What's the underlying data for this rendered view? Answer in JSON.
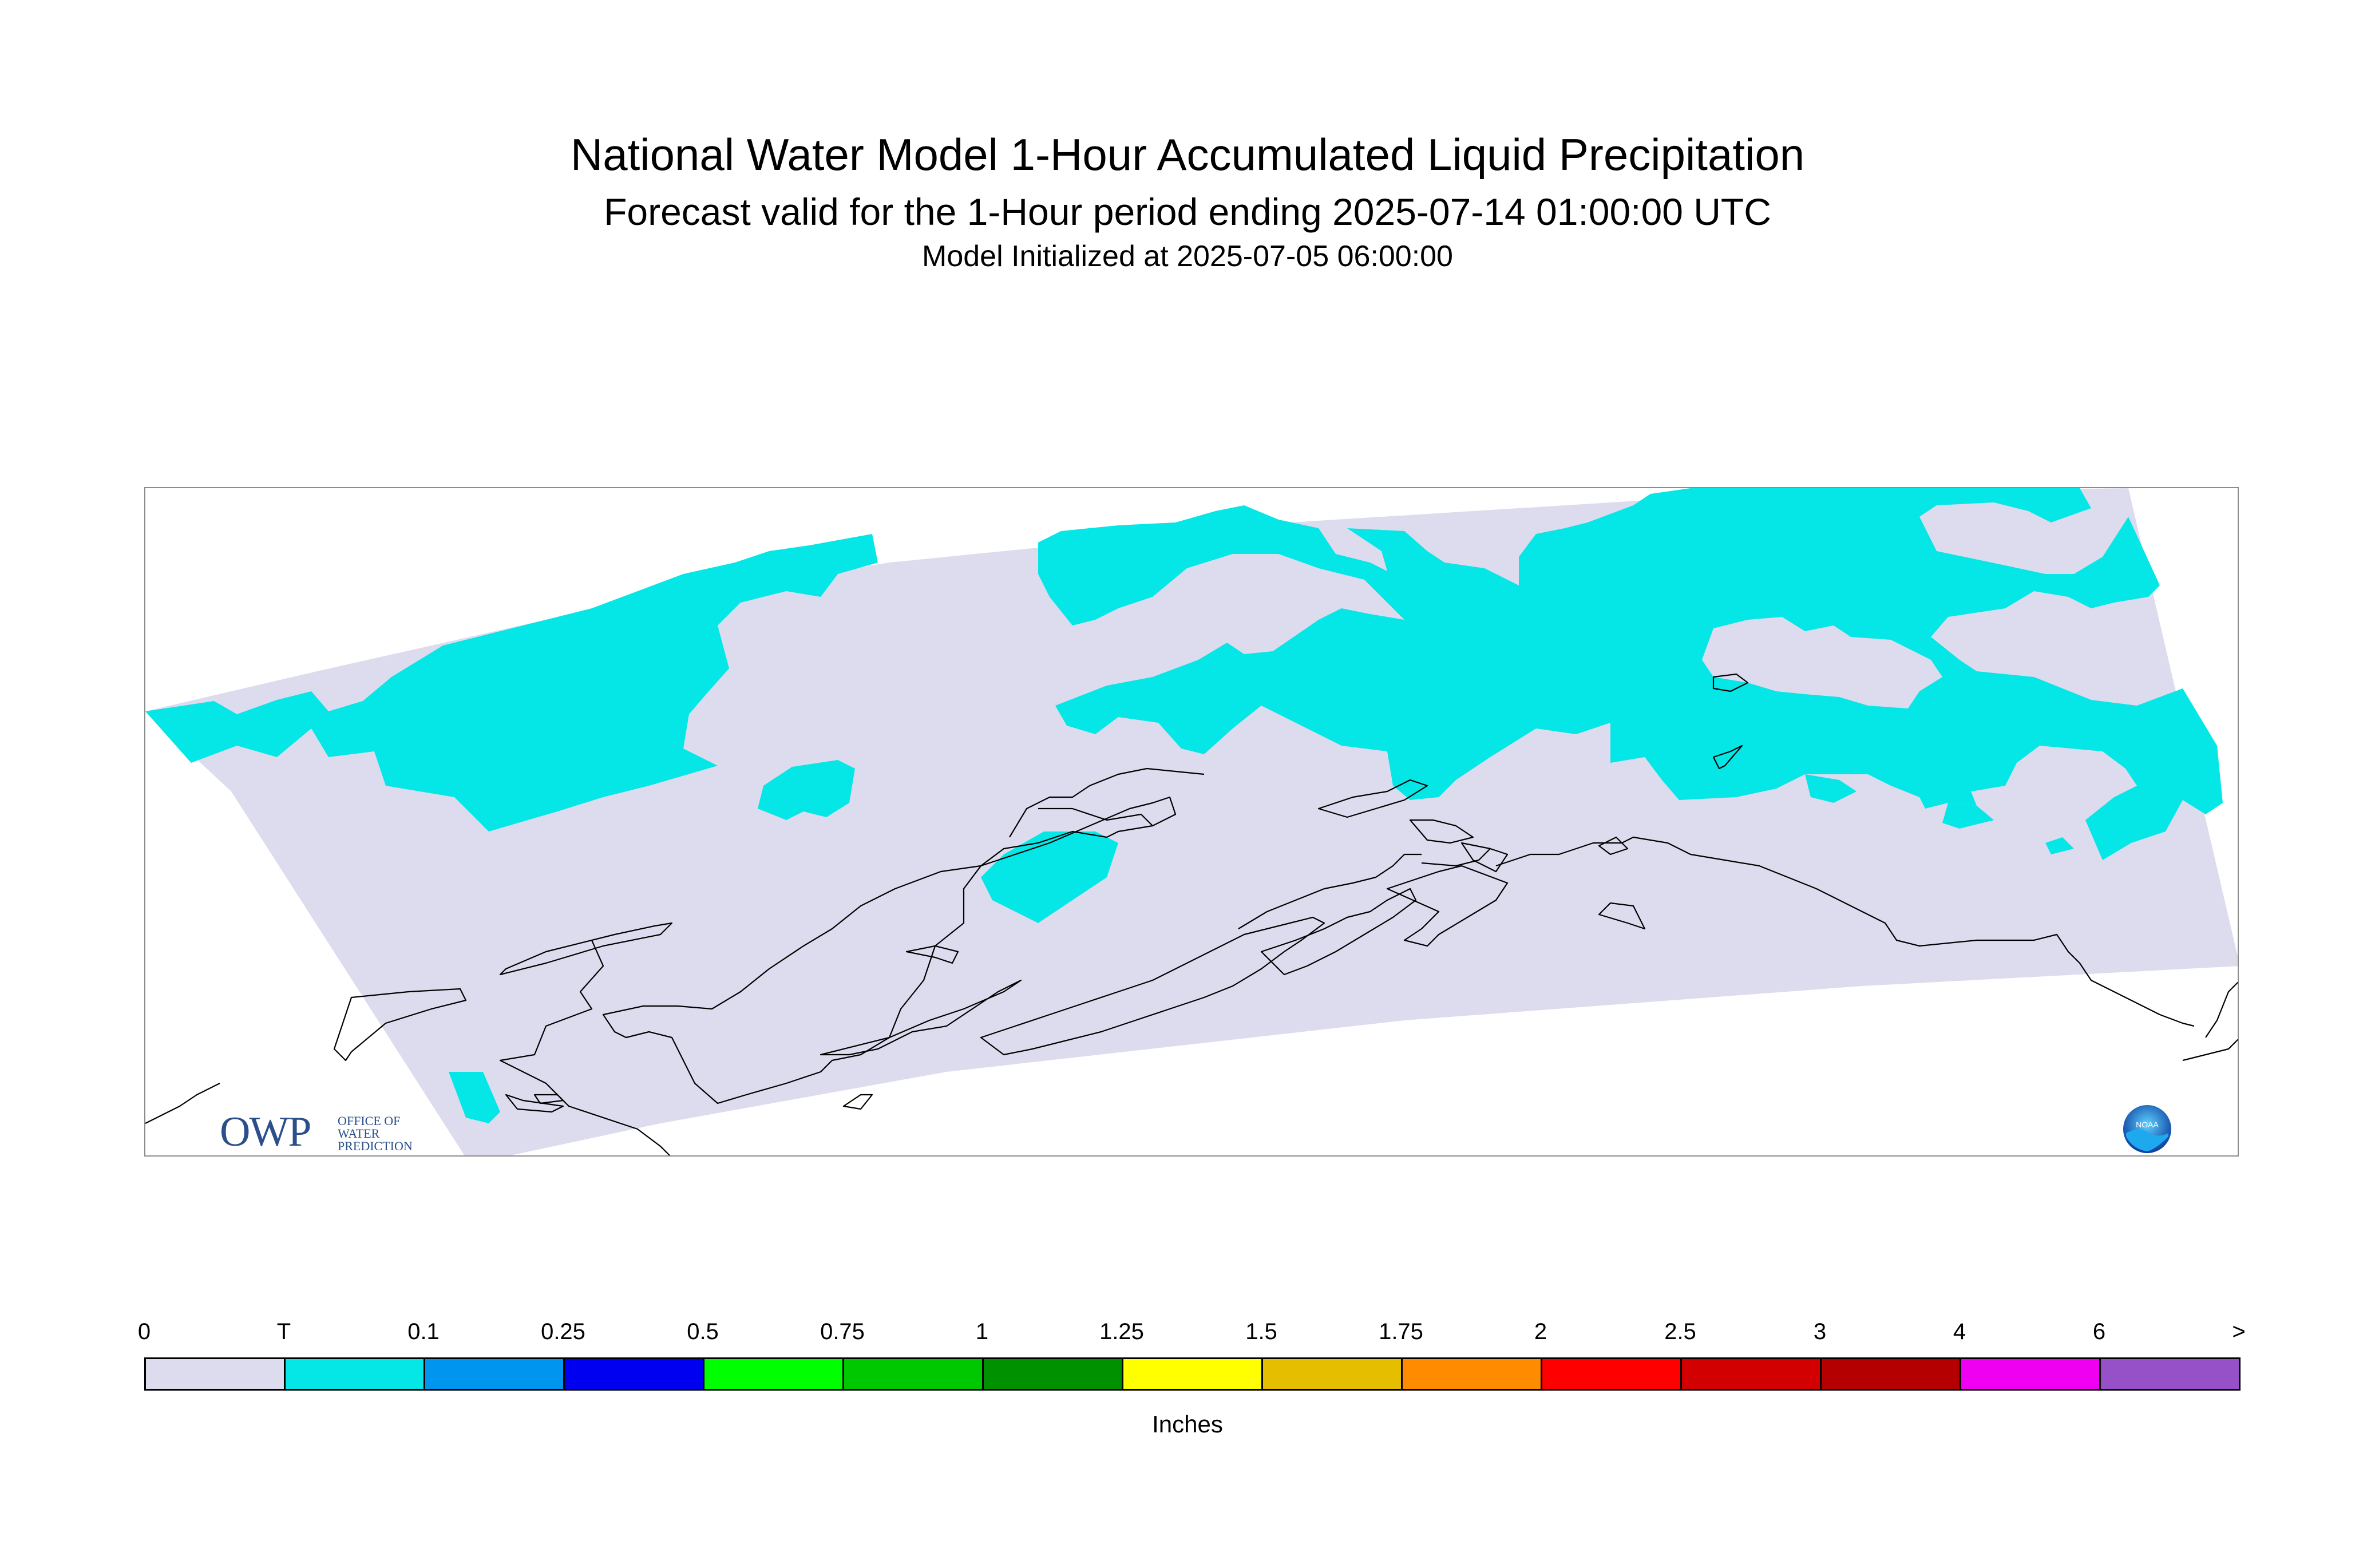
{
  "title": "National Water Model 1-Hour Accumulated Liquid Precipitation",
  "subtitle": "Forecast valid for the 1-Hour period ending 2025-07-14 01:00:00 UTC",
  "init_line": "Model Initialized at 2025-07-05 06:00:00",
  "map": {
    "region_colors": {
      "no_precip": "#dcdcee",
      "trace": "#05e6e6",
      "coastline": "#000000"
    }
  },
  "logos": {
    "owp_mark": "OWP",
    "owp_text": [
      "OFFICE OF",
      "WATER",
      "PREDICTION"
    ],
    "noaa_text": "NOAA"
  },
  "legend": {
    "ticks": [
      "0",
      "T",
      "0.1",
      "0.25",
      "0.5",
      "0.75",
      "1",
      "1.25",
      "1.5",
      "1.75",
      "2",
      "2.5",
      "3",
      "4",
      "6",
      ">"
    ],
    "colors": [
      "#dcdcee",
      "#05e6e6",
      "#0096f0",
      "#0000f0",
      "#00ff00",
      "#00c800",
      "#009100",
      "#ffff00",
      "#e6be00",
      "#ff8c00",
      "#ff0000",
      "#d20000",
      "#b40000",
      "#f000f0",
      "#9650c8"
    ],
    "units": "Inches"
  }
}
